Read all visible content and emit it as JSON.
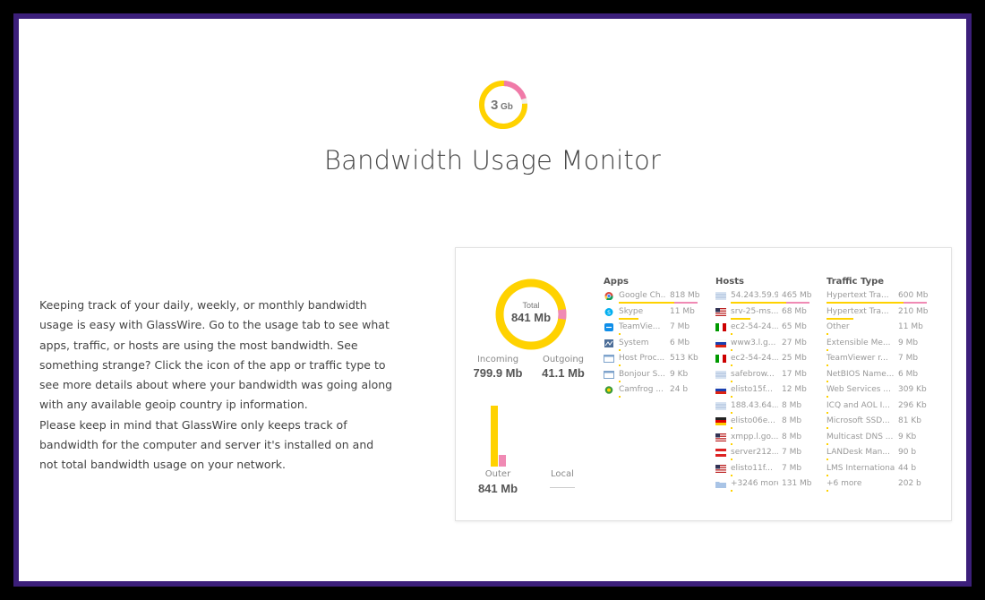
{
  "logo": {
    "text": "3",
    "unit": "Gb"
  },
  "title": "Bandwidth Usage Monitor",
  "description": {
    "p1": "Keeping track of your daily, weekly, or monthly bandwidth usage is easy with GlassWire. Go to the usage tab to see what apps, traffic, or hosts are using the most bandwidth. See something strange? Click the icon of the app or traffic type to see more details about where your bandwidth was going along with any available geoip country ip information.",
    "p2": "Please keep in mind that GlassWire only keeps track of bandwidth for the computer and server it's installed on and not total bandwidth usage on your network."
  },
  "usage": {
    "total_label": "Total",
    "total_value": "841 Mb",
    "incoming_label": "Incoming",
    "incoming_value": "799.9 Mb",
    "outgoing_label": "Outgoing",
    "outgoing_value": "41.1 Mb",
    "outer_label": "Outer",
    "outer_value": "841 Mb",
    "local_label": "Local",
    "incoming_fraction": 0.951
  },
  "colors": {
    "accent": "#ffd200",
    "pink": "#f08ab4",
    "frame": "#3c1f7a"
  },
  "apps": {
    "heading": "Apps",
    "rows": [
      {
        "name": "Google Ch...",
        "value": "818 Mb",
        "icon": "chrome-icon"
      },
      {
        "name": "Skype",
        "value": "11 Mb",
        "icon": "skype-icon"
      },
      {
        "name": "TeamVie...",
        "value": "7 Mb",
        "icon": "teamviewer-icon"
      },
      {
        "name": "System",
        "value": "6 Mb",
        "icon": "system-icon"
      },
      {
        "name": "Host Proc...",
        "value": "513 Kb",
        "icon": "window-icon"
      },
      {
        "name": "Bonjour S...",
        "value": "9 Kb",
        "icon": "window-icon"
      },
      {
        "name": "Camfrog ...",
        "value": "24 b",
        "icon": "camfrog-icon"
      }
    ]
  },
  "hosts": {
    "heading": "Hosts",
    "rows": [
      {
        "name": "54.243.59.9",
        "value": "465 Mb",
        "icon": "flag-unknown-icon"
      },
      {
        "name": "srv-25-ms...",
        "value": "68 Mb",
        "icon": "flag-us-icon"
      },
      {
        "name": "ec2-54-24...",
        "value": "65 Mb",
        "icon": "flag-it-icon"
      },
      {
        "name": "www3.l.g...",
        "value": "27 Mb",
        "icon": "flag-ru-icon"
      },
      {
        "name": "ec2-54-24...",
        "value": "25 Mb",
        "icon": "flag-it-icon"
      },
      {
        "name": "safebrow...",
        "value": "17 Mb",
        "icon": "flag-unknown-icon"
      },
      {
        "name": "elisto15f...",
        "value": "12 Mb",
        "icon": "flag-ru-icon"
      },
      {
        "name": "188.43.64...",
        "value": "8 Mb",
        "icon": "flag-unknown-icon"
      },
      {
        "name": "elisto06e...",
        "value": "8 Mb",
        "icon": "flag-de-icon"
      },
      {
        "name": "xmpp.l.go...",
        "value": "8 Mb",
        "icon": "flag-us-icon"
      },
      {
        "name": "server212...",
        "value": "7 Mb",
        "icon": "flag-at-icon"
      },
      {
        "name": "elisto11f...",
        "value": "7 Mb",
        "icon": "flag-us-icon"
      },
      {
        "name": "+3246 more",
        "value": "131 Mb",
        "icon": "folder-icon"
      }
    ]
  },
  "traffic": {
    "heading": "Traffic Type",
    "rows": [
      {
        "name": "Hypertext Tra...",
        "value": "600 Mb"
      },
      {
        "name": "Hypertext Tra...",
        "value": "210 Mb"
      },
      {
        "name": "Other",
        "value": "11 Mb"
      },
      {
        "name": "Extensible Me...",
        "value": "9 Mb"
      },
      {
        "name": "TeamViewer r...",
        "value": "7 Mb"
      },
      {
        "name": "NetBIOS Name...",
        "value": "6 Mb"
      },
      {
        "name": "Web Services ...",
        "value": "309 Kb"
      },
      {
        "name": "ICQ and AOL I...",
        "value": "296 Kb"
      },
      {
        "name": "Microsoft SSD...",
        "value": "81 Kb"
      },
      {
        "name": "Multicast DNS ...",
        "value": "9 Kb"
      },
      {
        "name": "LANDesk Man...",
        "value": "90 b"
      },
      {
        "name": "LMS International",
        "value": "44 b"
      },
      {
        "name": "+6 more",
        "value": "202 b"
      }
    ]
  }
}
